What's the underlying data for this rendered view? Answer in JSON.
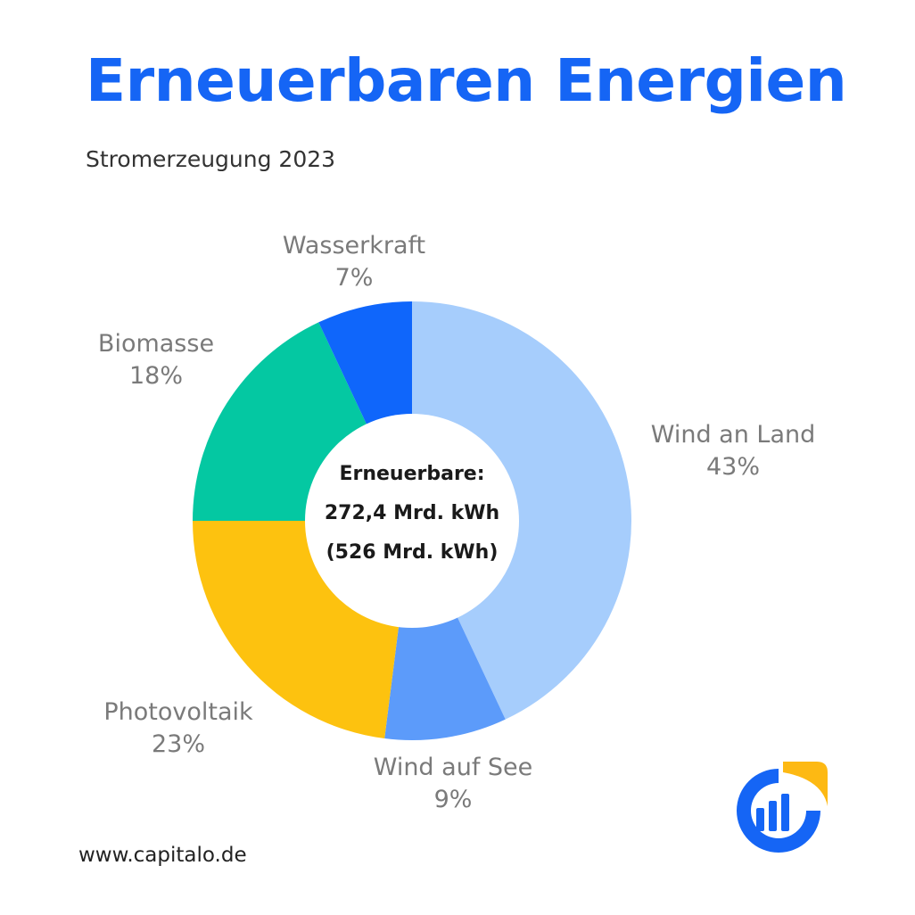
{
  "header": {
    "title": "Erneuerbaren Energien",
    "subtitle": "Stromerzeugung 2023"
  },
  "chart_data": {
    "type": "pie",
    "variant": "donut",
    "title": "Erneuerbaren Energien",
    "subtitle": "Stromerzeugung 2023",
    "unit": "%",
    "slices": [
      {
        "label": "Wind an Land",
        "value": 43,
        "display": "43%",
        "color": "#a6cdfc"
      },
      {
        "label": "Wind auf See",
        "value": 9,
        "display": "9%",
        "color": "#5c9bfa"
      },
      {
        "label": "Photovoltaik",
        "value": 23,
        "display": "23%",
        "color": "#fdc20f"
      },
      {
        "label": "Biomasse",
        "value": 18,
        "display": "18%",
        "color": "#04c8a2"
      },
      {
        "label": "Wasserkraft",
        "value": 7,
        "display": "7%",
        "color": "#0f66fb"
      }
    ],
    "center_lines": [
      "Erneuerbare:",
      "272,4 Mrd. kWh",
      "(526 Mrd. kWh)"
    ],
    "legend": "none"
  },
  "footer": {
    "url": "www.capitalo.de"
  },
  "logo": {
    "icon": "capitalo-logo-icon",
    "colors": {
      "ring": "#1565f5",
      "bars": "#1565f5",
      "corner": "#fdb913"
    }
  },
  "colors": {
    "title": "#1565f5",
    "label": "#7a7a7a"
  }
}
